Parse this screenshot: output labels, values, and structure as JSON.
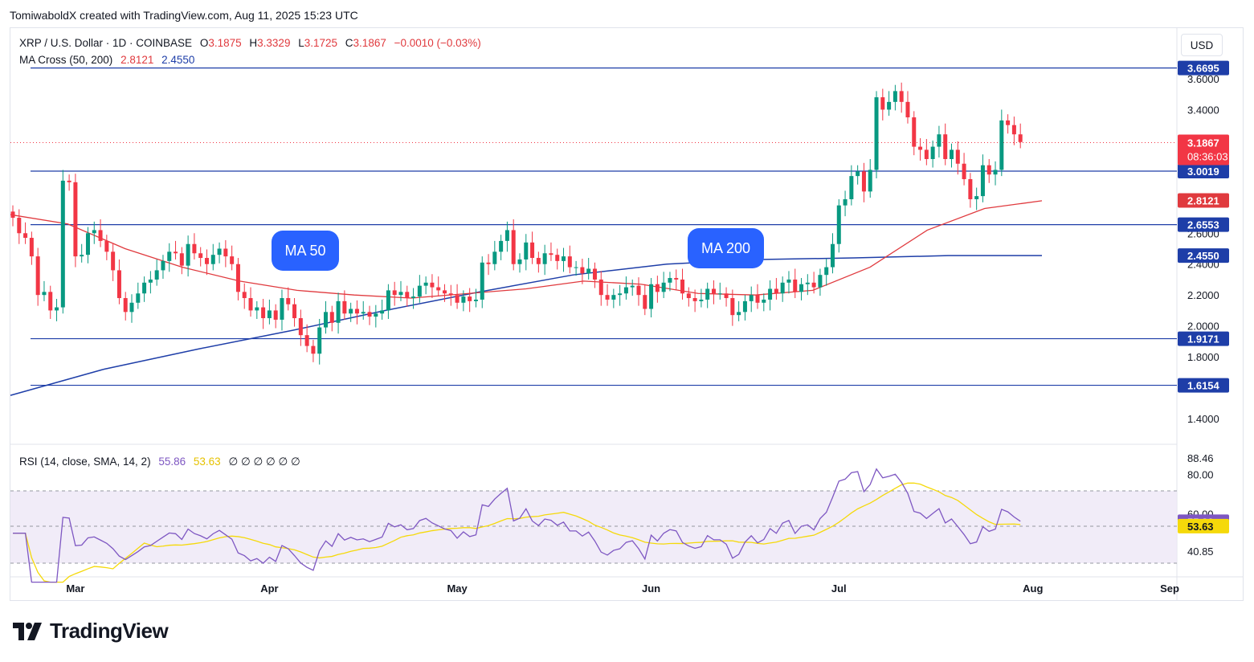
{
  "header": {
    "credit": "TomiwaboldX created with TradingView.com, Aug 11, 2025 15:23 UTC",
    "usd_button": "USD",
    "brand": "TradingView"
  },
  "legend": {
    "symbol": "XRP / U.S. Dollar · 1D · COINBASE",
    "open_label": "O",
    "open": "3.1875",
    "high_label": "H",
    "high": "3.3329",
    "low_label": "L",
    "low": "3.1725",
    "close_label": "C",
    "close": "3.1867",
    "change": "−0.0010 (−0.03%)",
    "ma_label": "MA Cross (50, 200)",
    "ma50": "2.8121",
    "ma200": "2.4550",
    "rsi_label": "RSI (14, close, SMA, 14, 2)",
    "rsi_value": "55.86",
    "rsi_sma": "53.63",
    "rsi_extra": "∅ ∅ ∅ ∅ ∅ ∅"
  },
  "annotations": {
    "ma50_bubble": "MA 50",
    "ma200_bubble": "MA 200"
  },
  "colors": {
    "up": "#089981",
    "down": "#f23645",
    "ma50": "#e03a3e",
    "ma200": "#1e3ea8",
    "rsi": "#7e57c2",
    "rsi_sma": "#f5d90a",
    "hline": "#1e3ea8",
    "accent": "#2962ff"
  },
  "chart_data": [
    {
      "type": "candlestick",
      "title": "XRP / U.S. Dollar · 1D · COINBASE",
      "x_start": "2025-02-19",
      "xaxis_ticks": [
        "Mar",
        "Apr",
        "May",
        "Jun",
        "Jul",
        "Aug",
        "Sep"
      ],
      "y_ticks": [
        1.4,
        1.6,
        1.8,
        2.0,
        2.2,
        2.4,
        2.6,
        2.8,
        3.0,
        3.2,
        3.4,
        3.6
      ],
      "ylim": [
        1.3,
        3.8
      ],
      "horizontal_lines": [
        3.6695,
        3.0019,
        2.6553,
        1.9171,
        1.6154
      ],
      "price_labels": {
        "last": "3.1867",
        "countdown": "08:36:03",
        "ma50": "2.8121",
        "ma200": "2.4550"
      },
      "closes": [
        2.7,
        2.6,
        2.57,
        2.45,
        2.2,
        2.22,
        2.1,
        2.12,
        2.94,
        2.93,
        2.45,
        2.46,
        2.6,
        2.62,
        2.55,
        2.48,
        2.36,
        2.18,
        2.09,
        2.15,
        2.21,
        2.28,
        2.3,
        2.36,
        2.42,
        2.48,
        2.47,
        2.39,
        2.53,
        2.47,
        2.44,
        2.4,
        2.46,
        2.5,
        2.45,
        2.4,
        2.22,
        2.18,
        2.1,
        2.12,
        2.05,
        2.1,
        2.04,
        2.18,
        2.14,
        2.05,
        1.94,
        1.87,
        1.82,
        1.99,
        2.09,
        2.02,
        2.16,
        2.08,
        2.11,
        2.08,
        2.09,
        2.06,
        2.08,
        2.1,
        2.23,
        2.2,
        2.22,
        2.18,
        2.19,
        2.26,
        2.28,
        2.25,
        2.23,
        2.21,
        2.2,
        2.15,
        2.19,
        2.16,
        2.17,
        2.41,
        2.4,
        2.48,
        2.55,
        2.62,
        2.4,
        2.43,
        2.54,
        2.44,
        2.4,
        2.47,
        2.46,
        2.42,
        2.45,
        2.38,
        2.38,
        2.34,
        2.37,
        2.3,
        2.2,
        2.17,
        2.2,
        2.21,
        2.25,
        2.26,
        2.2,
        2.11,
        2.27,
        2.22,
        2.28,
        2.31,
        2.3,
        2.21,
        2.18,
        2.16,
        2.17,
        2.24,
        2.21,
        2.21,
        2.18,
        2.07,
        2.09,
        2.16,
        2.2,
        2.15,
        2.17,
        2.24,
        2.21,
        2.28,
        2.3,
        2.22,
        2.27,
        2.28,
        2.25,
        2.33,
        2.38,
        2.53,
        2.78,
        2.82,
        2.97,
        3.0,
        2.87,
        3.01,
        3.48,
        3.4,
        3.45,
        3.52,
        3.45,
        3.35,
        3.16,
        3.14,
        3.08,
        3.16,
        3.24,
        3.08,
        3.14,
        3.05,
        2.95,
        2.82,
        2.84,
        3.04,
        2.98,
        3.01,
        3.33,
        3.3,
        3.24,
        3.19
      ]
    },
    {
      "type": "line",
      "series": [
        {
          "name": "MA 50",
          "values_sampled": [
            2.72,
            2.66,
            2.5,
            2.38,
            2.29,
            2.23,
            2.2,
            2.18,
            2.21,
            2.24,
            2.29,
            2.27,
            2.21,
            2.2,
            2.23,
            2.38,
            2.62,
            2.76,
            2.81
          ]
        },
        {
          "name": "MA 200",
          "values_sampled": [
            1.55,
            1.72,
            1.85,
            1.97,
            2.1,
            2.22,
            2.33,
            2.4,
            2.43,
            2.44,
            2.455,
            2.455
          ]
        }
      ]
    },
    {
      "type": "line",
      "title": "RSI (14, close, SMA, 14, 2)",
      "y_ticks_labels": [
        "88.46",
        "80.00",
        "60.00",
        "40.85"
      ],
      "bands": [
        70,
        50,
        30
      ],
      "series": [
        {
          "name": "RSI",
          "last": 55.86
        },
        {
          "name": "RSI SMA",
          "last": 53.63
        }
      ]
    }
  ]
}
